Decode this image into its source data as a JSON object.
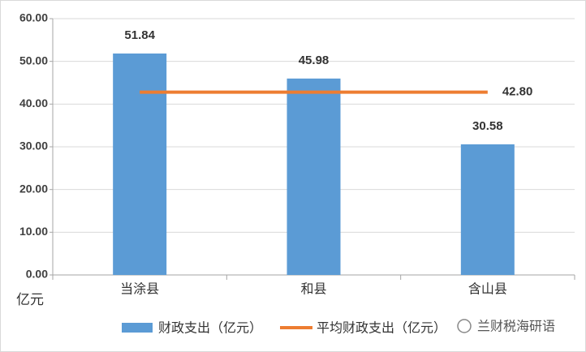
{
  "chart_data": {
    "type": "bar",
    "y_axis_label": "亿元",
    "categories": [
      "当涂县",
      "和县",
      "含山县"
    ],
    "series": [
      {
        "name": "财政支出（亿元）",
        "type": "bar",
        "color": "#5b9bd5",
        "values": [
          51.84,
          45.98,
          30.58
        ]
      },
      {
        "name": "平均财政支出（亿元）",
        "type": "line",
        "color": "#ed7d31",
        "values": [
          42.8,
          42.8,
          42.8
        ],
        "value_labels": [
          null,
          null,
          "42.80"
        ]
      }
    ],
    "ylim": [
      0,
      60
    ],
    "yticks": [
      {
        "value": 0,
        "label": "0.00"
      },
      {
        "value": 10,
        "label": "10.00"
      },
      {
        "value": 20,
        "label": "20.00"
      },
      {
        "value": 30,
        "label": "30.00"
      },
      {
        "value": 40,
        "label": "40.00"
      },
      {
        "value": 50,
        "label": "50.00"
      },
      {
        "value": 60,
        "label": "60.00"
      }
    ],
    "grid": true,
    "legend": "bottom",
    "watermark": "兰财税海研语"
  }
}
